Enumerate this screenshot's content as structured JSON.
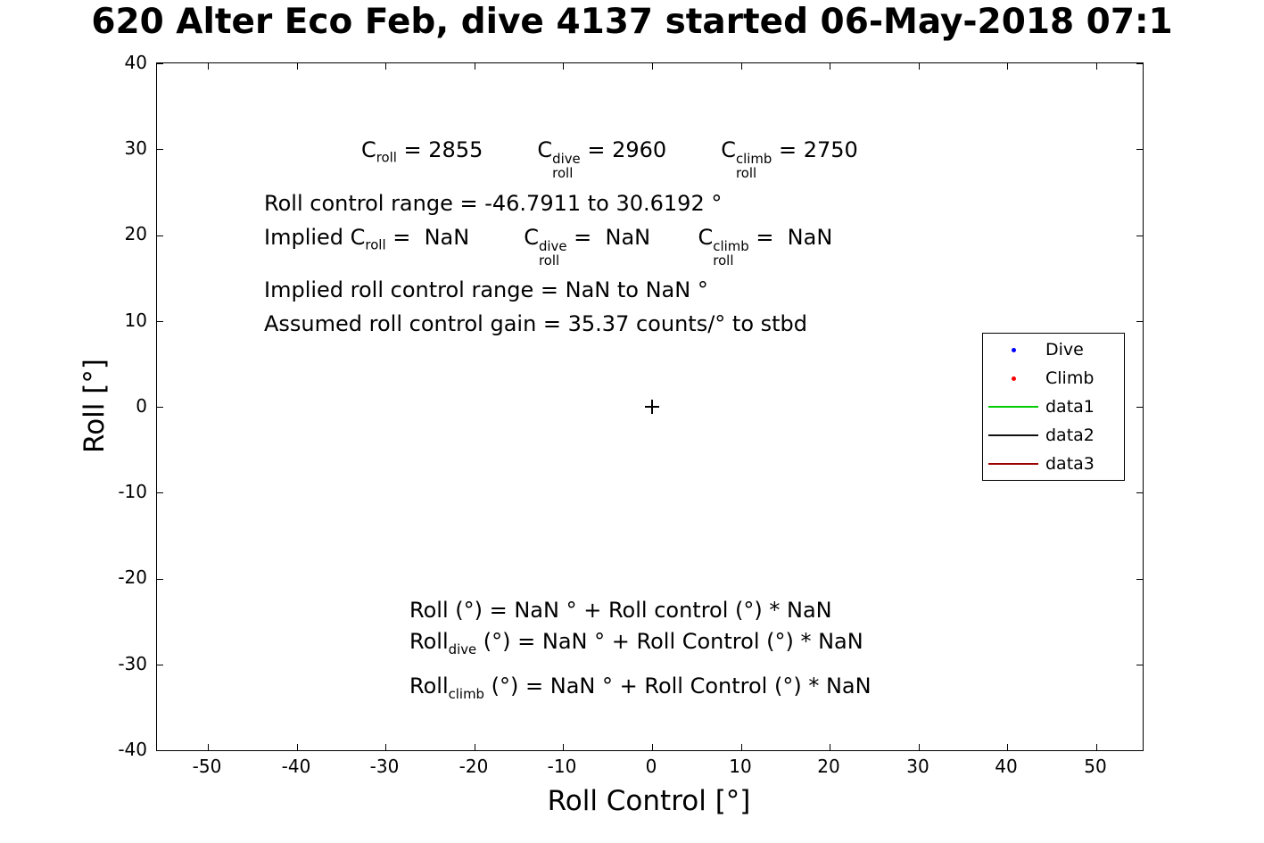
{
  "title": "620 Alter Eco Feb, dive 4137 started 06-May-2018 07:1",
  "chart_data": {
    "type": "scatter",
    "title": "620 Alter Eco Feb, dive 4137 started 06-May-2018 07:1",
    "xlabel": "Roll Control [°]",
    "ylabel": "Roll [°]",
    "xlim": [
      -55,
      55
    ],
    "ylim": [
      -40,
      40
    ],
    "x_ticks": [
      -50,
      -40,
      -30,
      -20,
      -10,
      0,
      10,
      20,
      30,
      40,
      50
    ],
    "y_ticks": [
      40,
      30,
      20,
      10,
      0,
      -10,
      -20,
      -30,
      -40
    ],
    "grid": false,
    "legend": {
      "position": "right",
      "entries": [
        {
          "label": "Dive",
          "marker": "dot",
          "color": "#0000ff"
        },
        {
          "label": "Climb",
          "marker": "dot",
          "color": "#ff0000"
        },
        {
          "label": "data1",
          "marker": "line",
          "color": "#00cc00"
        },
        {
          "label": "data2",
          "marker": "line",
          "color": "#111111"
        },
        {
          "label": "data3",
          "marker": "line",
          "color": "#990000"
        }
      ]
    },
    "series": [
      {
        "name": "origin-marker",
        "type": "scatter",
        "marker": "plus",
        "color": "#000000",
        "points": [
          [
            0,
            0
          ]
        ]
      },
      {
        "name": "Dive",
        "type": "scatter",
        "marker": "dot",
        "color": "#0000ff",
        "points": []
      },
      {
        "name": "Climb",
        "type": "scatter",
        "marker": "dot",
        "color": "#ff0000",
        "points": []
      }
    ],
    "annotations_text": [
      "C_roll = 2855      C^dive_roll = 2960      C^climb_roll = 2750",
      "Roll control range = -46.7911 to 30.6192 °",
      "Implied C_roll =  NaN      C^dive_roll =  NaN     C^climb_roll =  NaN",
      "Implied roll control range = NaN to NaN °",
      "Assumed roll control gain = 35.37 counts/° to stbd",
      "Roll (°) = NaN ° + Roll control (°) * NaN",
      "Roll_dive (°) = NaN ° + Roll Control (°) * NaN",
      "Roll_climb (°) = NaN ° + Roll Control (°) * NaN"
    ]
  },
  "rich": {
    "lineA": [
      {
        "t": "C"
      },
      {
        "sub": "roll"
      },
      {
        "t": " = 2855        "
      },
      {
        "t": "C"
      },
      {
        "stack": [
          "dive",
          "roll"
        ]
      },
      {
        "t": " = 2960        "
      },
      {
        "t": "C"
      },
      {
        "stack": [
          "climb",
          "roll"
        ]
      },
      {
        "t": " = 2750"
      }
    ],
    "lineB": [
      {
        "t": "Roll control range = -46.7911 to 30.6192 °"
      }
    ],
    "lineC": [
      {
        "t": "Implied C"
      },
      {
        "sub": "roll"
      },
      {
        "t": " =  NaN        "
      },
      {
        "t": "C"
      },
      {
        "stack": [
          "dive",
          "roll"
        ]
      },
      {
        "t": " =  NaN       "
      },
      {
        "t": "C"
      },
      {
        "stack": [
          "climb",
          "roll"
        ]
      },
      {
        "t": " =  NaN"
      }
    ],
    "lineD": [
      {
        "t": "Implied roll control range = NaN to NaN °"
      }
    ],
    "lineE": [
      {
        "t": "Assumed roll control gain = 35.37 counts/° to stbd"
      }
    ],
    "lineF": [
      {
        "t": "Roll (°) = NaN ° + Roll control (°) * NaN"
      }
    ],
    "lineG": [
      {
        "t": "Roll"
      },
      {
        "sub": "dive"
      },
      {
        "t": " (°) = NaN ° + Roll Control (°) * NaN"
      }
    ],
    "lineH": [
      {
        "t": "Roll"
      },
      {
        "sub": "climb"
      },
      {
        "t": " (°) = NaN ° + Roll Control (°) * NaN"
      }
    ]
  }
}
